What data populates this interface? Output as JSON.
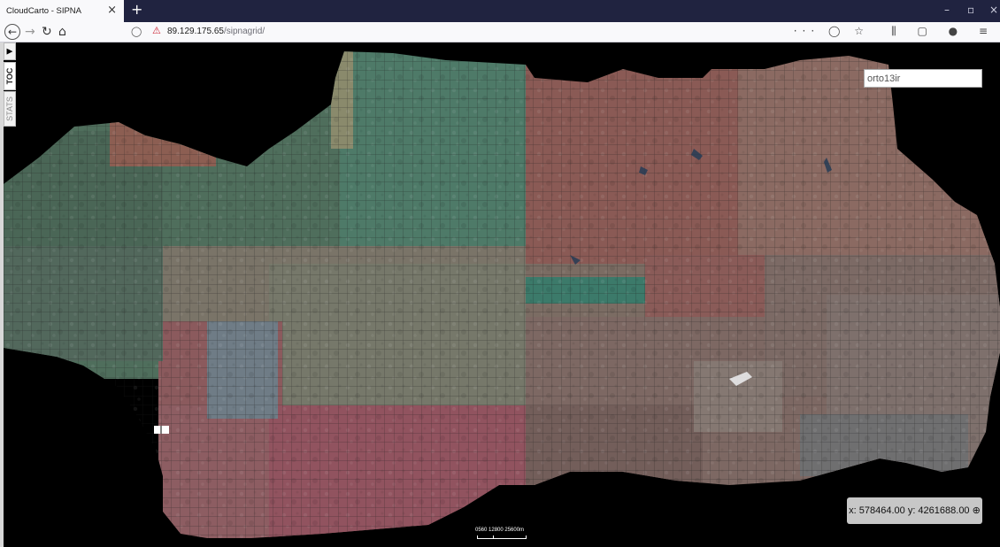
{
  "browser": {
    "tab_title": "CloudCarto - SIPNA",
    "tab_close": "×",
    "new_tab": "+",
    "url_host": "89.129.175.65",
    "url_path": "/sipnagrid/",
    "url_icons": "··· ◯ ☆",
    "tool_icons": "⫼ ▢ ● ≡",
    "window_controls": [
      "–",
      "▫",
      "×"
    ]
  },
  "nav": {
    "back": "←",
    "forward": "→",
    "reload": "↻",
    "home": "⌂"
  },
  "sidepanel": {
    "toggle": "▶",
    "toc_label": "TOC",
    "stats_label": "STATS"
  },
  "map": {
    "layer_input_value": "orto13ir",
    "coordinates": "x: 578464.00 y: 4261688.00 ⊕",
    "scale_labels": "0560    12800      25600m"
  },
  "colors": {
    "chrome_dark": "#202340",
    "chrome_light": "#f9f9fb",
    "map_background": "#000000",
    "grid_line": "#2a2a2a"
  }
}
